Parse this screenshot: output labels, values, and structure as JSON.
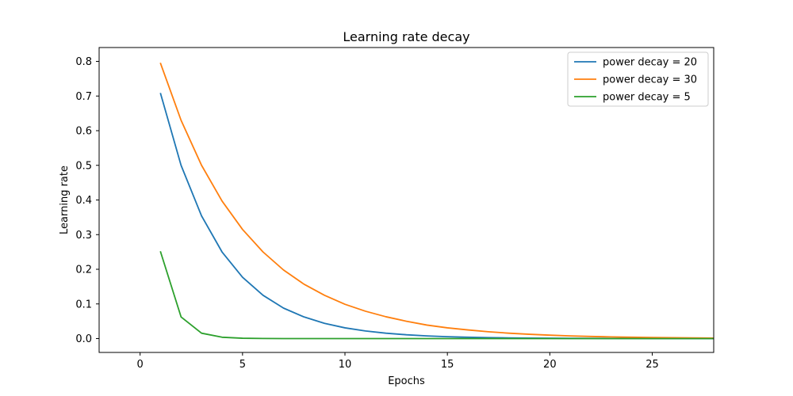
{
  "chart_data": {
    "type": "line",
    "title": "Learning rate decay",
    "xlabel": "Epochs",
    "ylabel": "Learning rate",
    "xlim": [
      -2,
      28
    ],
    "ylim": [
      -0.04,
      0.84
    ],
    "xticks": [
      0,
      5,
      10,
      15,
      20,
      25
    ],
    "yticks": [
      0.0,
      0.1,
      0.2,
      0.3,
      0.4,
      0.5,
      0.6,
      0.7,
      0.8
    ],
    "ytick_labels": [
      "0.0",
      "0.1",
      "0.2",
      "0.3",
      "0.4",
      "0.5",
      "0.6",
      "0.7",
      "0.8"
    ],
    "grid": false,
    "legend_position": "top-right",
    "x": [
      1,
      2,
      3,
      4,
      5,
      6,
      7,
      8,
      9,
      10,
      11,
      12,
      13,
      14,
      15,
      16,
      17,
      18,
      19,
      20,
      21,
      22,
      23,
      24,
      25,
      26,
      27,
      28
    ],
    "series": [
      {
        "name": "power decay = 20",
        "color": "#1f77b4",
        "values": [
          0.707,
          0.5,
          0.354,
          0.25,
          0.177,
          0.125,
          0.088,
          0.0625,
          0.044,
          0.031,
          0.022,
          0.0156,
          0.011,
          0.0078,
          0.0055,
          0.0039,
          0.0028,
          0.002,
          0.0014,
          0.001,
          0.0007,
          0.0005,
          0.00035,
          0.00024,
          0.00017,
          0.00012,
          9e-05,
          6e-05
        ]
      },
      {
        "name": "power decay = 30",
        "color": "#ff7f0e",
        "values": [
          0.794,
          0.63,
          0.5,
          0.397,
          0.315,
          0.25,
          0.198,
          0.157,
          0.125,
          0.099,
          0.079,
          0.063,
          0.05,
          0.039,
          0.031,
          0.025,
          0.0197,
          0.0156,
          0.0124,
          0.0098,
          0.0078,
          0.0062,
          0.0049,
          0.0039,
          0.0031,
          0.0025,
          0.0019,
          0.0015
        ]
      },
      {
        "name": "power decay = 5",
        "color": "#2ca02c",
        "values": [
          0.25,
          0.0625,
          0.0156,
          0.0039,
          0.001,
          0.00024,
          6e-05,
          1.5e-05,
          3.8e-06,
          1e-06,
          0,
          0,
          0,
          0,
          0,
          0,
          0,
          0,
          0,
          0,
          0,
          0,
          0,
          0,
          0,
          0,
          0,
          0
        ]
      }
    ]
  }
}
